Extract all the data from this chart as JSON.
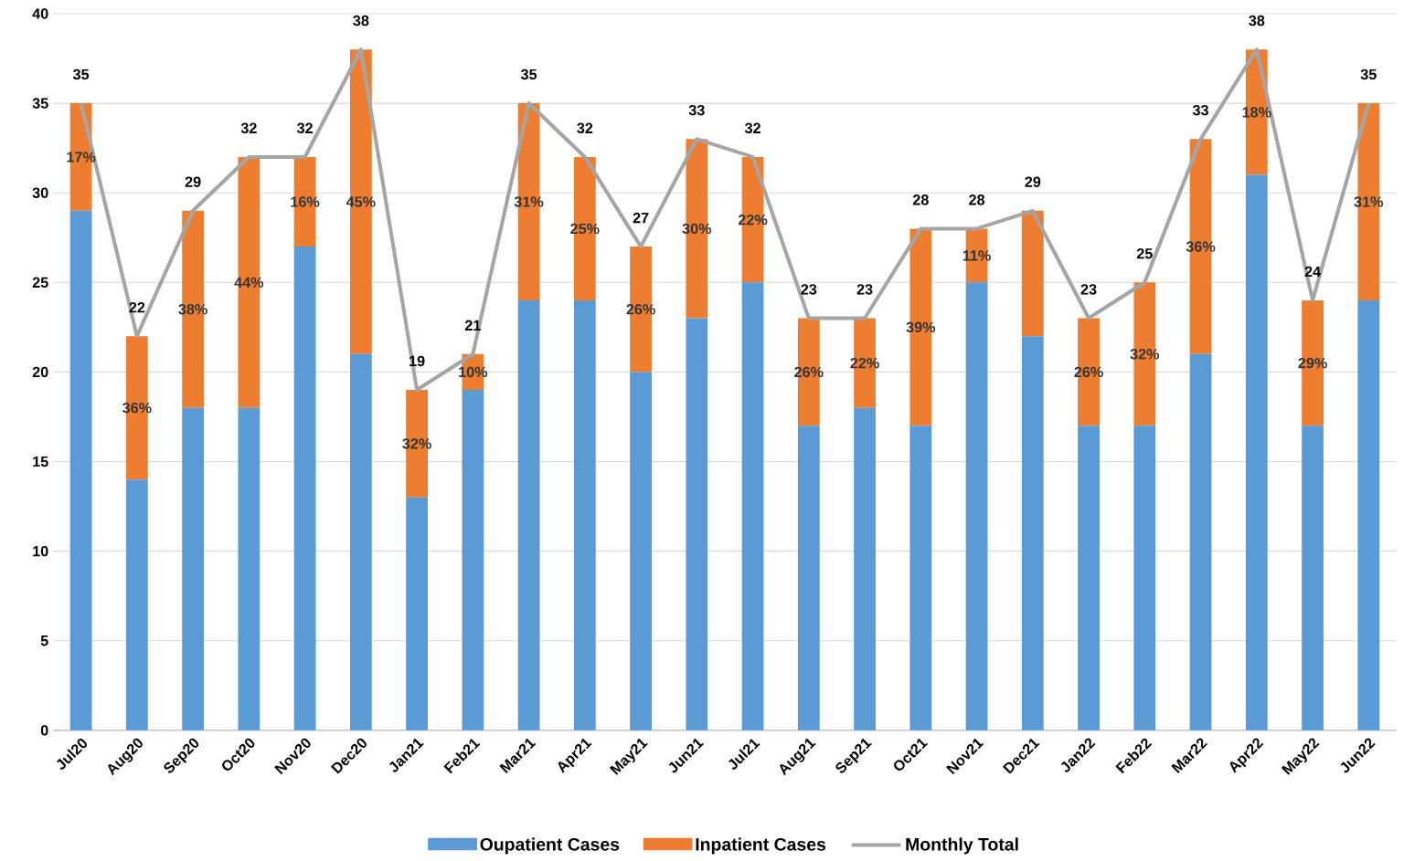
{
  "chart_data": {
    "type": "bar",
    "stacked": true,
    "categories": [
      "Jul20",
      "Aug20",
      "Sep20",
      "Oct20",
      "Nov20",
      "Dec20",
      "Jan21",
      "Feb21",
      "Mar21",
      "Apr21",
      "May21",
      "Jun21",
      "Jul21",
      "Aug21",
      "Sep21",
      "Oct21",
      "Nov21",
      "Dec21",
      "Jan22",
      "Feb22",
      "Mar22",
      "Apr22",
      "May22",
      "Jun22"
    ],
    "series": [
      {
        "name": "Oupatient Cases",
        "color": "#5b9bd5",
        "values": [
          29,
          14,
          18,
          18,
          27,
          21,
          13,
          19,
          24,
          24,
          20,
          23,
          25,
          17,
          18,
          17,
          25,
          22,
          17,
          17,
          21,
          31,
          17,
          24
        ]
      },
      {
        "name": "Inpatient Cases",
        "color": "#ed7d31",
        "values": [
          6,
          8,
          11,
          14,
          5,
          17,
          6,
          2,
          11,
          8,
          7,
          10,
          7,
          6,
          5,
          11,
          3,
          7,
          6,
          8,
          12,
          7,
          7,
          11
        ]
      },
      {
        "name": "Monthly Total",
        "type": "line",
        "color": "#a5a5a5",
        "values": [
          35,
          22,
          29,
          32,
          32,
          38,
          19,
          21,
          35,
          32,
          27,
          33,
          32,
          23,
          23,
          28,
          28,
          29,
          23,
          25,
          33,
          38,
          24,
          35
        ],
        "value_labels": [
          "35",
          "22",
          "29",
          "32",
          "32",
          "38",
          "19",
          "21",
          "35",
          "32",
          "27",
          "33",
          "32",
          "23",
          "23",
          "28",
          "28",
          "29",
          "23",
          "25",
          "33",
          "38",
          "24",
          "35"
        ]
      }
    ],
    "annotations": [
      {
        "text": "17%",
        "x": "Jul20",
        "y": 32
      },
      {
        "text": "36%",
        "x": "Aug20",
        "y": 18
      },
      {
        "text": "38%",
        "x": "Sep20",
        "y": 23.5
      },
      {
        "text": "44%",
        "x": "Oct20",
        "y": 25
      },
      {
        "text": "16%",
        "x": "Nov20",
        "y": 29.5
      },
      {
        "text": "45%",
        "x": "Dec20",
        "y": 29.5
      },
      {
        "text": "32%",
        "x": "Jan21",
        "y": 16
      },
      {
        "text": "10%",
        "x": "Feb21",
        "y": 20
      },
      {
        "text": "31%",
        "x": "Mar21",
        "y": 29.5
      },
      {
        "text": "25%",
        "x": "Apr21",
        "y": 28
      },
      {
        "text": "26%",
        "x": "May21",
        "y": 23.5
      },
      {
        "text": "30%",
        "x": "Jun21",
        "y": 28
      },
      {
        "text": "22%",
        "x": "Jul21",
        "y": 28.5
      },
      {
        "text": "26%",
        "x": "Aug21",
        "y": 20
      },
      {
        "text": "22%",
        "x": "Sep21",
        "y": 20.5
      },
      {
        "text": "39%",
        "x": "Oct21",
        "y": 22.5
      },
      {
        "text": "11%",
        "x": "Nov21",
        "y": 26.5
      },
      {
        "text": "26%",
        "x": "Jan22",
        "y": 20
      },
      {
        "text": "32%",
        "x": "Feb22",
        "y": 21
      },
      {
        "text": "36%",
        "x": "Mar22",
        "y": 27
      },
      {
        "text": "18%",
        "x": "Apr22",
        "y": 34.5
      },
      {
        "text": "29%",
        "x": "May22",
        "y": 20.5
      },
      {
        "text": "31%",
        "x": "Jun22",
        "y": 29.5
      }
    ],
    "ylim": [
      0,
      40
    ],
    "yticks": [
      0,
      5,
      10,
      15,
      20,
      25,
      30,
      35,
      40
    ],
    "grid": "y",
    "legend": "bottom"
  }
}
